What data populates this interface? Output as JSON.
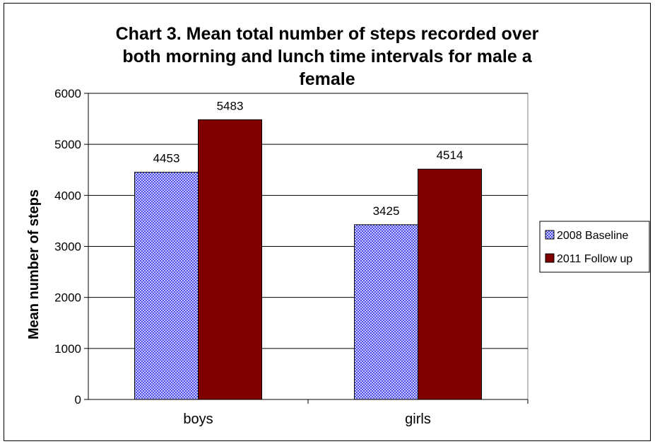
{
  "chart_data": {
    "type": "bar",
    "title_lines": [
      "Chart 3. Mean total number of steps recorded over",
      "both morning and lunch time intervals for male a",
      "female"
    ],
    "xlabel": "",
    "ylabel": "Mean number of steps",
    "categories": [
      "boys",
      "girls"
    ],
    "series": [
      {
        "name": "2008 Baseline",
        "values": [
          4453,
          3425
        ],
        "color": "#4a4ae8",
        "pattern": "checkered"
      },
      {
        "name": "2011 Follow up",
        "values": [
          5483,
          4514
        ],
        "color": "#800000"
      }
    ],
    "ylim": [
      0,
      6000
    ],
    "yticks": [
      0,
      1000,
      2000,
      3000,
      4000,
      5000,
      6000
    ],
    "grid": true,
    "legend_position": "right",
    "data_labels": true
  }
}
